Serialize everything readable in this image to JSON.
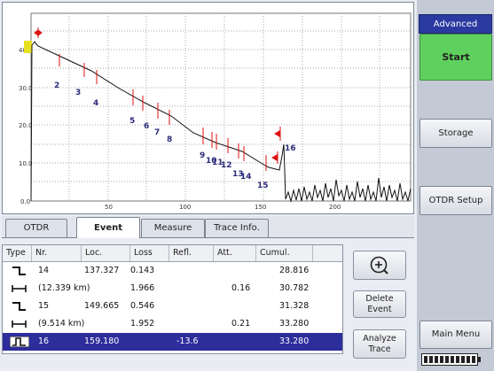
{
  "graph": {
    "y_ticks": [
      "40.0",
      "30.0",
      "20.0",
      "10.0",
      "0.0"
    ],
    "x_ticks": [
      "50",
      "100",
      "150",
      "200"
    ],
    "event_labels": [
      "2",
      "3",
      "4",
      "5",
      "6",
      "7",
      "8",
      "9",
      "10",
      "11",
      "12",
      "13",
      "14",
      "15",
      "16"
    ]
  },
  "tabs": {
    "otdr": "OTDR",
    "event": "Event",
    "measure": "Measure",
    "trace_info": "Trace Info."
  },
  "table": {
    "columns": [
      "Type",
      "Nr.",
      "Loc.",
      "Loss",
      "Refl.",
      "Att.",
      "Cumul."
    ],
    "rows": [
      {
        "type": "event-step",
        "nr": "14",
        "loc": "137.327",
        "loss": "0.143",
        "refl": "",
        "att": "",
        "cumul": "28.816",
        "selected": false
      },
      {
        "type": "section",
        "nr": "(12.339 km)",
        "loc": "",
        "loss": "1.966",
        "refl": "",
        "att": "0.16",
        "cumul": "30.782",
        "selected": false
      },
      {
        "type": "event-step",
        "nr": "15",
        "loc": "149.665",
        "loss": "0.546",
        "refl": "",
        "att": "",
        "cumul": "31.328",
        "selected": false
      },
      {
        "type": "section",
        "nr": "(9.514 km)",
        "loc": "",
        "loss": "1.952",
        "refl": "",
        "att": "0.21",
        "cumul": "33.280",
        "selected": false
      },
      {
        "type": "end-reflective",
        "nr": "16",
        "loc": "159.180",
        "loss": "",
        "refl": "-13.6",
        "att": "",
        "cumul": "33.280",
        "selected": true
      }
    ]
  },
  "buttons": {
    "delete_line1": "Delete",
    "delete_line2": "Event",
    "analyze_line1": "Analyze",
    "analyze_line2": "Trace"
  },
  "sidebar": {
    "mode": "Advanced",
    "start": "Start",
    "storage": "Storage",
    "otdr_setup": "OTDR Setup",
    "main_menu": "Main Menu"
  },
  "colors": {
    "accent_green": "#5ed05e",
    "mode_header": "#2a3aa0",
    "selection": "#2d2d9c",
    "marker": "#dd1111",
    "label": "#2b2b7a"
  },
  "battery": {
    "segments": 10
  }
}
